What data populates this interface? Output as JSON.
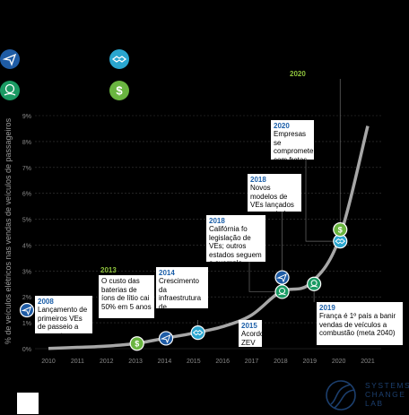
{
  "chart_data": {
    "type": "line",
    "title": "",
    "xlabel": "",
    "ylabel": "% de veículos elétricos nas vendas de veículos de passageiros",
    "x": [
      2010,
      2011,
      2012,
      2013,
      2014,
      2015,
      2016,
      2017,
      2018,
      2019,
      2020,
      2021
    ],
    "series": [
      {
        "values": [
          0.01,
          0.05,
          0.1,
          0.2,
          0.4,
          0.6,
          0.85,
          1.3,
          2.2,
          2.5,
          4.2,
          8.6
        ]
      }
    ],
    "ylim": [
      0,
      9
    ],
    "yticks": [
      "0%",
      "1%",
      "2%",
      "3%",
      "4%",
      "5%",
      "6%",
      "7%",
      "8%",
      "9%"
    ],
    "xticks": [
      "2010",
      "2011",
      "2012",
      "2013",
      "2014",
      "2015",
      "2016",
      "2017",
      "2018",
      "2019",
      "2020",
      "2021"
    ],
    "grid": true,
    "markers": [
      {
        "x": 2013.05,
        "y": 0.2,
        "icon": "dollar-icon",
        "color": "#6ab540"
      },
      {
        "x": 2014.05,
        "y": 0.4,
        "icon": "paper-plane-icon",
        "color": "#1f5ca5"
      },
      {
        "x": 2015.15,
        "y": 0.62,
        "icon": "handshake-icon",
        "color": "#2aa6cf"
      },
      {
        "x": 2018.05,
        "y": 2.2,
        "icon": "globe-hand-icon",
        "color": "#1a9a63"
      },
      {
        "x": 2018.05,
        "y": 2.75,
        "icon": "paper-plane-icon",
        "color": "#1f5ca5"
      },
      {
        "x": 2019.15,
        "y": 2.5,
        "icon": "globe-hand-icon",
        "color": "#1a9a63"
      },
      {
        "x": 2020.05,
        "y": 4.15,
        "icon": "handshake-icon",
        "color": "#2aa6cf"
      },
      {
        "x": 2020.05,
        "y": 4.6,
        "icon": "dollar-icon",
        "color": "#6ab540"
      }
    ],
    "annotations": [
      {
        "year": "2008",
        "text": "Lançamento de primeiros VEs de passeio a um custo acessível",
        "color": "#1f5ca5"
      },
      {
        "year": "2013",
        "text": "O custo das baterias de íons de lítio cai 50% em 5 anos",
        "color": "#6ab540"
      },
      {
        "year": "2014",
        "text": "Crescimento da infraestrutura de carregamento",
        "color": "#1f5ca5"
      },
      {
        "year": "2015",
        "text": "Acordo ZEV A",
        "color": "#2aa6cf"
      },
      {
        "year": "2018",
        "text": "Califórnia fo legislação de VEs; outros estados seguem o exemplo",
        "color": "#1a9a63"
      },
      {
        "year": "2018",
        "text": "Novos modelos de VEs lançados e anunciados",
        "color": "#1f5ca5"
      },
      {
        "year": "2019",
        "text": "França é 1º país a banir vendas de veículos a combustão (meta 2040)",
        "color": "#1a9a63"
      },
      {
        "year": "2020",
        "text": "Empresas se compromete com frotas d",
        "color": "#2aa6cf"
      },
      {
        "year": "2020",
        "text": "",
        "color": "#6ab540"
      }
    ]
  },
  "legend": [
    {
      "icon": "paper-plane-icon",
      "color": "#1f5ca5"
    },
    {
      "icon": "handshake-icon",
      "color": "#2aa6cf"
    },
    {
      "icon": "globe-hand-icon",
      "color": "#1a9a63"
    },
    {
      "icon": "dollar-icon",
      "color": "#6ab540"
    }
  ],
  "footer": {
    "logo_line1": "SYSTEMS",
    "logo_line2": "CHANGE",
    "logo_line3": "LAB"
  }
}
